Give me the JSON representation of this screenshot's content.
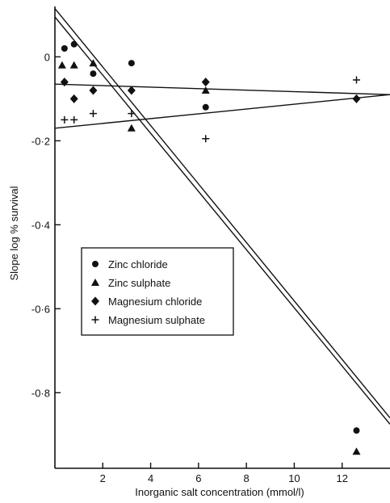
{
  "chart_data": {
    "type": "scatter",
    "xlabel": "Inorganic salt concentration (mmol/l)",
    "ylabel": "Slope log % survival",
    "xlim": [
      0,
      14
    ],
    "ylim": [
      -0.98,
      0.12
    ],
    "x_ticks": [
      {
        "value": 2,
        "label": "2"
      },
      {
        "value": 4,
        "label": "4"
      },
      {
        "value": 6,
        "label": "6"
      },
      {
        "value": 8,
        "label": "8"
      },
      {
        "value": 10,
        "label": "10"
      },
      {
        "value": 12,
        "label": "12"
      }
    ],
    "y_ticks": [
      {
        "value": 0,
        "label": "0"
      },
      {
        "value": -0.2,
        "label": "-0·2"
      },
      {
        "value": -0.4,
        "label": "-0·4"
      },
      {
        "value": -0.6,
        "label": "-0·6"
      },
      {
        "value": -0.8,
        "label": "-0·8"
      }
    ],
    "legend_position": "center-left",
    "grid": false,
    "series": [
      {
        "name": "Zinc chloride",
        "marker": "circle",
        "points": [
          {
            "x": 0.4,
            "y": 0.02
          },
          {
            "x": 0.8,
            "y": 0.03
          },
          {
            "x": 1.6,
            "y": -0.04
          },
          {
            "x": 3.2,
            "y": -0.015
          },
          {
            "x": 6.3,
            "y": -0.12
          },
          {
            "x": 12.6,
            "y": -0.89
          }
        ]
      },
      {
        "name": "Zinc sulphate",
        "marker": "triangle",
        "points": [
          {
            "x": 0.3,
            "y": -0.02
          },
          {
            "x": 0.8,
            "y": -0.02
          },
          {
            "x": 1.6,
            "y": -0.015
          },
          {
            "x": 3.2,
            "y": -0.17
          },
          {
            "x": 6.3,
            "y": -0.08
          },
          {
            "x": 12.6,
            "y": -0.94
          }
        ]
      },
      {
        "name": "Magnesium chloride",
        "marker": "diamond",
        "points": [
          {
            "x": 0.4,
            "y": -0.06
          },
          {
            "x": 0.8,
            "y": -0.1
          },
          {
            "x": 1.6,
            "y": -0.08
          },
          {
            "x": 3.2,
            "y": -0.08
          },
          {
            "x": 6.3,
            "y": -0.06
          },
          {
            "x": 12.6,
            "y": -0.1
          }
        ]
      },
      {
        "name": "Magnesium sulphate",
        "marker": "plus",
        "points": [
          {
            "x": 0.4,
            "y": -0.15
          },
          {
            "x": 0.8,
            "y": -0.15
          },
          {
            "x": 1.6,
            "y": -0.135
          },
          {
            "x": 3.2,
            "y": -0.135
          },
          {
            "x": 6.3,
            "y": -0.195
          },
          {
            "x": 12.6,
            "y": -0.055
          }
        ]
      }
    ],
    "fit_lines": [
      {
        "x1": 0.0,
        "y1": 0.095,
        "x2": 14.0,
        "y2": -0.875
      },
      {
        "x1": 0.0,
        "y1": 0.115,
        "x2": 14.0,
        "y2": -0.86
      },
      {
        "x1": 0.0,
        "y1": -0.065,
        "x2": 14.0,
        "y2": -0.09
      },
      {
        "x1": 0.0,
        "y1": -0.17,
        "x2": 14.0,
        "y2": -0.09
      }
    ]
  }
}
